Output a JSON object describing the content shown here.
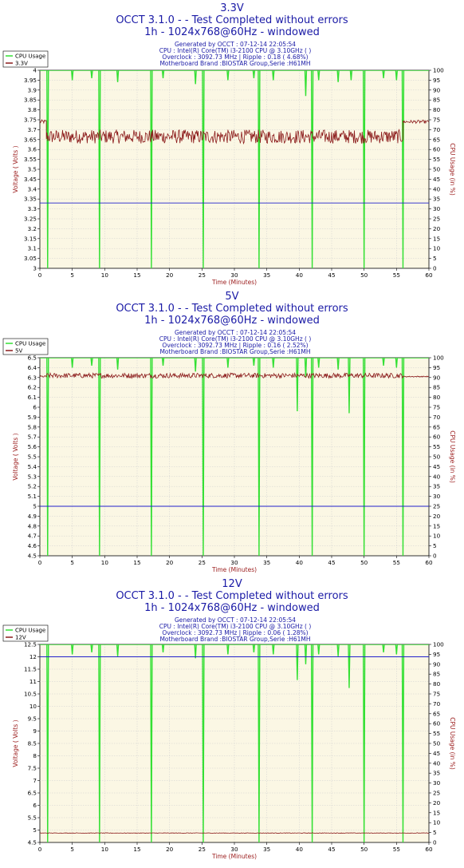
{
  "colors": {
    "plot_bg": "#fbf7e4",
    "grid": "#cfcfcf",
    "cpu": "#33e033",
    "voltage": "#8b1a1a",
    "threshold": "#2222cc",
    "title": "#1a1aa6",
    "axis_label": "#9a1a1a"
  },
  "chart_data": [
    {
      "type": "line",
      "rail": "3.3V",
      "title_rail": "3.3V",
      "title_main": "OCCT 3.1.0 -  - Test Completed without errors",
      "title_mode": "1h - 1024x768@60Hz - windowed",
      "info": [
        "Generated by OCCT : 07-12-14 22:05:54",
        "CPU : Intel(R) Core(TM) i3-2100 CPU @ 3.10GHz (  )",
        "Overclock : 3092.73 MHz | Ripple : 0.18 ( 4.68%)",
        "Motherboard Brand :BIOSTAR Group,Serie :H61MH"
      ],
      "legend": [
        "CPU Usage",
        "3.3V"
      ],
      "xlabel": "Time (Minutes)",
      "ylabel": "Voltage ( Volts )",
      "y2label": "CPU Usage (in %)",
      "xlim": [
        0,
        60
      ],
      "ylim": [
        3,
        4
      ],
      "y2lim": [
        0,
        100
      ],
      "xticks": [
        "0",
        "5",
        "10",
        "15",
        "20",
        "25",
        "30",
        "35",
        "40",
        "45",
        "50",
        "55",
        "60"
      ],
      "yticks": [
        "3",
        "3.05",
        "3.1",
        "3.15",
        "3.2",
        "3.25",
        "3.3",
        "3.35",
        "3.4",
        "3.45",
        "3.5",
        "3.55",
        "3.6",
        "3.65",
        "3.7",
        "3.75",
        "3.8",
        "3.85",
        "3.9",
        "3.95",
        "4"
      ],
      "y2ticks": [
        "0",
        "5",
        "10",
        "15",
        "20",
        "25",
        "30",
        "35",
        "40",
        "45",
        "50",
        "55",
        "60",
        "65",
        "70",
        "75",
        "80",
        "85",
        "90",
        "95",
        "100"
      ],
      "threshold": 3.33,
      "voltage_series": {
        "name": "3.3V",
        "segments": [
          {
            "x_start": 0,
            "x_end": 1,
            "level": 3.74,
            "noise": 0.01
          },
          {
            "x_start": 1,
            "x_end": 56,
            "level": 3.665,
            "noise": 0.035
          },
          {
            "x_start": 56,
            "x_end": 60,
            "level": 3.74,
            "noise": 0.008
          }
        ]
      },
      "cpu_series": {
        "name": "CPU Usage",
        "level": 100,
        "drops_to_zero": [
          1.2,
          9.2,
          17.2,
          25.2,
          33.8,
          42,
          50,
          56
        ],
        "spikes": [
          [
            5,
            95
          ],
          [
            8,
            96
          ],
          [
            12,
            94
          ],
          [
            19,
            96
          ],
          [
            24,
            93
          ],
          [
            29,
            95
          ],
          [
            33,
            96
          ],
          [
            36,
            95
          ],
          [
            41,
            87
          ],
          [
            43,
            95
          ],
          [
            46,
            94
          ],
          [
            48,
            95
          ],
          [
            53,
            96
          ],
          [
            55,
            95
          ]
        ]
      }
    },
    {
      "type": "line",
      "rail": "5V",
      "title_rail": "5V",
      "title_main": "OCCT 3.1.0 -  - Test Completed without errors",
      "title_mode": "1h - 1024x768@60Hz - windowed",
      "info": [
        "Generated by OCCT : 07-12-14 22:05:54",
        "CPU : Intel(R) Core(TM) i3-2100 CPU @ 3.10GHz (  )",
        "Overclock : 3092.73 MHz | Ripple : 0.16 ( 2.52%)",
        "Motherboard Brand :BIOSTAR Group,Serie :H61MH"
      ],
      "legend": [
        "CPU Usage",
        "5V"
      ],
      "xlabel": "Time (Minutes)",
      "ylabel": "Voltage ( Volts )",
      "y2label": "CPU Usage (in %)",
      "xlim": [
        0,
        60
      ],
      "ylim": [
        4.5,
        6.5
      ],
      "y2lim": [
        0,
        100
      ],
      "xticks": [
        "0",
        "5",
        "10",
        "15",
        "20",
        "25",
        "30",
        "35",
        "40",
        "45",
        "50",
        "55",
        "60"
      ],
      "yticks": [
        "4.5",
        "4.6",
        "4.7",
        "4.8",
        "4.9",
        "5",
        "5.1",
        "5.2",
        "5.3",
        "5.4",
        "5.5",
        "5.6",
        "5.7",
        "5.8",
        "5.9",
        "6",
        "6.1",
        "6.2",
        "6.3",
        "6.4",
        "6.5"
      ],
      "y2ticks": [
        "0",
        "5",
        "10",
        "15",
        "20",
        "25",
        "30",
        "35",
        "40",
        "45",
        "50",
        "55",
        "60",
        "65",
        "70",
        "75",
        "80",
        "85",
        "90",
        "95",
        "100"
      ],
      "threshold": 5.0,
      "voltage_series": {
        "name": "5V",
        "segments": [
          {
            "x_start": 0,
            "x_end": 1,
            "level": 6.31,
            "noise": 0.01
          },
          {
            "x_start": 1,
            "x_end": 56,
            "level": 6.32,
            "noise": 0.025
          },
          {
            "x_start": 56,
            "x_end": 60,
            "level": 6.31,
            "noise": 0.005
          }
        ]
      },
      "cpu_series": {
        "name": "CPU Usage",
        "level": 100,
        "drops_to_zero": [
          1.2,
          9.2,
          17.2,
          25.2,
          33.8,
          42,
          50,
          56
        ],
        "spikes": [
          [
            5,
            95
          ],
          [
            8,
            96
          ],
          [
            12,
            94
          ],
          [
            19,
            96
          ],
          [
            24,
            93
          ],
          [
            29,
            95
          ],
          [
            33,
            96
          ],
          [
            36,
            95
          ],
          [
            39.7,
            73
          ],
          [
            41,
            90
          ],
          [
            43,
            95
          ],
          [
            46,
            94
          ],
          [
            47.7,
            72
          ],
          [
            53,
            96
          ],
          [
            55,
            95
          ]
        ]
      }
    },
    {
      "type": "line",
      "rail": "12V",
      "title_rail": "12V",
      "title_main": "OCCT 3.1.0 -  - Test Completed without errors",
      "title_mode": "1h - 1024x768@60Hz - windowed",
      "info": [
        "Generated by OCCT : 07-12-14 22:05:54",
        "CPU : Intel(R) Core(TM) i3-2100 CPU @ 3.10GHz (  )",
        "Overclock : 3092.73 MHz | Ripple : 0.06 ( 1.28%)",
        "Motherboard Brand :BIOSTAR Group,Serie :H61MH"
      ],
      "legend": [
        "CPU Usage",
        "12V"
      ],
      "xlabel": "Time (Minutes)",
      "ylabel": "Voltage ( Volts )",
      "y2label": "CPU Usage (in %)",
      "xlim": [
        0,
        60
      ],
      "ylim": [
        4.5,
        12.5
      ],
      "y2lim": [
        0,
        100
      ],
      "xticks": [
        "0",
        "5",
        "10",
        "15",
        "20",
        "25",
        "30",
        "35",
        "40",
        "45",
        "50",
        "55",
        "60"
      ],
      "yticks": [
        "4.5",
        "5",
        "5.5",
        "6",
        "6.5",
        "7",
        "7.5",
        "8",
        "8.5",
        "9",
        "9.5",
        "10",
        "10.5",
        "11",
        "11.5",
        "12",
        "12.5"
      ],
      "y2ticks": [
        "0",
        "5",
        "10",
        "15",
        "20",
        "25",
        "30",
        "35",
        "40",
        "45",
        "50",
        "55",
        "60",
        "65",
        "70",
        "75",
        "80",
        "85",
        "90",
        "95",
        "100"
      ],
      "threshold": 12.0,
      "voltage_series": {
        "name": "12V",
        "segments": [
          {
            "x_start": 0,
            "x_end": 60,
            "level": 4.88,
            "noise": 0.01
          }
        ]
      },
      "cpu_series": {
        "name": "CPU Usage",
        "level": 100,
        "drops_to_zero": [
          1.2,
          9.2,
          17.2,
          25.2,
          33.8,
          42,
          50,
          56
        ],
        "spikes": [
          [
            5,
            95
          ],
          [
            8,
            96
          ],
          [
            12,
            94
          ],
          [
            19,
            96
          ],
          [
            24,
            93
          ],
          [
            29,
            95
          ],
          [
            33,
            96
          ],
          [
            36,
            95
          ],
          [
            39.7,
            82
          ],
          [
            41,
            90
          ],
          [
            43,
            95
          ],
          [
            46,
            94
          ],
          [
            47.7,
            78
          ],
          [
            53,
            96
          ],
          [
            55,
            95
          ]
        ]
      }
    }
  ]
}
